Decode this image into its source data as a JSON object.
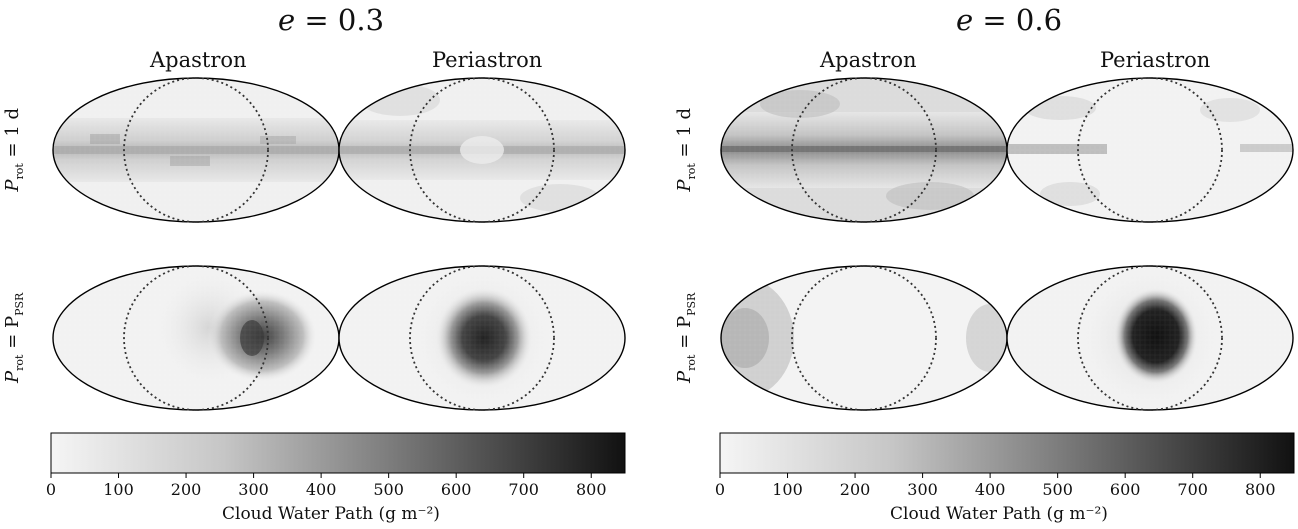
{
  "figure": {
    "panels": [
      {
        "title_italic": "e",
        "title_value": " = 0.3",
        "columns": [
          "Apastron",
          "Periastron"
        ],
        "rows": [
          {
            "label_main": "P",
            "label_sub": "rot",
            "label_rest": " = 1 d"
          },
          {
            "label_main": "P",
            "label_sub": "rot",
            "label_rest": " = P",
            "label_sub2": "PSR"
          }
        ]
      },
      {
        "title_italic": "e",
        "title_value": " = 0.6",
        "columns": [
          "Apastron",
          "Periastron"
        ],
        "rows": [
          {
            "label_main": "P",
            "label_sub": "rot",
            "label_rest": " = 1 d"
          },
          {
            "label_main": "P",
            "label_sub": "rot",
            "label_rest": " = P",
            "label_sub2": "PSR"
          }
        ]
      }
    ],
    "colorbar": {
      "label": "Cloud Water Path (g m⁻²)",
      "ticks": [
        "0",
        "100",
        "200",
        "300",
        "400",
        "500",
        "600",
        "700",
        "800"
      ],
      "range": [
        0,
        850
      ],
      "colormap": "Greys",
      "color_low": "#f5f5f5",
      "color_high": "#111111"
    }
  },
  "chart_data": [
    {
      "type": "heatmap",
      "title": "e = 0.3",
      "projection": "mollweide",
      "maps": [
        {
          "row": "P_rot = 1 d",
          "column": "Apastron",
          "pattern": "equatorial cloud band",
          "approx_max": 300
        },
        {
          "row": "P_rot = 1 d",
          "column": "Periastron",
          "pattern": "equatorial band, patchy high latitudes",
          "approx_max": 300
        },
        {
          "row": "P_rot = P_PSR",
          "column": "Apastron",
          "pattern": "crescent east of substellar point",
          "approx_max": 550
        },
        {
          "row": "P_rot = P_PSR",
          "column": "Periastron",
          "pattern": "dense substellar cloud deck",
          "approx_max": 800
        }
      ],
      "colorbar_label": "Cloud Water Path (g m⁻²)",
      "clim": [
        0,
        850
      ]
    },
    {
      "type": "heatmap",
      "title": "e = 0.6",
      "projection": "mollweide",
      "maps": [
        {
          "row": "P_rot = 1 d",
          "column": "Apastron",
          "pattern": "strong equatorial cloud band",
          "approx_max": 400
        },
        {
          "row": "P_rot = 1 d",
          "column": "Periastron",
          "pattern": "thin equatorial band, sparse clouds",
          "approx_max": 250
        },
        {
          "row": "P_rot = P_PSR",
          "column": "Apastron",
          "pattern": "clouds at limbs/nightside",
          "approx_max": 300
        },
        {
          "row": "P_rot = P_PSR",
          "column": "Periastron",
          "pattern": "very dense substellar cloud deck",
          "approx_max": 850
        }
      ],
      "colorbar_label": "Cloud Water Path (g m⁻²)",
      "clim": [
        0,
        850
      ]
    }
  ]
}
